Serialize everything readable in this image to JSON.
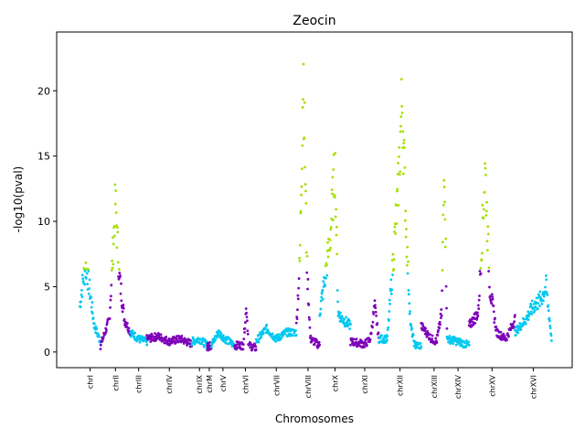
{
  "chart_data": {
    "type": "scatter",
    "title": "Zeocin",
    "xlabel": "Chromosomes",
    "ylabel": "-log10(pval)",
    "ylim": [
      -1.2,
      24.5
    ],
    "xlim": [
      0,
      1
    ],
    "yticks": [
      0,
      5,
      10,
      15,
      20
    ],
    "grid": false,
    "legend": "none",
    "colors": {
      "odd_chromosomes": "#00c8f0",
      "even_chromosomes": "#7e00b8",
      "significant": "#a5e000",
      "significance_threshold": 6.2
    },
    "chromosomes": [
      {
        "name": "chrI",
        "x_start": 0.045,
        "x_end": 0.085,
        "color": "cyan",
        "profile": [
          [
            0,
            3.5
          ],
          [
            0.15,
            5.5
          ],
          [
            0.3,
            6.5
          ],
          [
            0.5,
            4.5
          ],
          [
            0.7,
            2
          ],
          [
            1,
            0.8
          ]
        ]
      },
      {
        "name": "chrII",
        "x_start": 0.085,
        "x_end": 0.143,
        "color": "purple",
        "profile": [
          [
            0,
            0.5
          ],
          [
            0.3,
            2.5
          ],
          [
            0.5,
            11.5
          ],
          [
            0.62,
            6
          ],
          [
            0.8,
            2.5
          ],
          [
            1,
            1.5
          ]
        ]
      },
      {
        "name": "chrIII",
        "x_start": 0.143,
        "x_end": 0.175,
        "color": "cyan",
        "profile": [
          [
            0,
            1.5
          ],
          [
            0.5,
            1
          ],
          [
            1,
            0.8
          ]
        ]
      },
      {
        "name": "chrIV",
        "x_start": 0.175,
        "x_end": 0.262,
        "color": "purple",
        "profile": [
          [
            0,
            1
          ],
          [
            0.25,
            1.2
          ],
          [
            0.5,
            0.8
          ],
          [
            0.75,
            1
          ],
          [
            1,
            0.6
          ]
        ]
      },
      {
        "name": "chrIX",
        "x_start": 0.262,
        "x_end": 0.292,
        "color": "cyan",
        "profile": [
          [
            0,
            0.8
          ],
          [
            0.5,
            1
          ],
          [
            1,
            0.5
          ]
        ]
      },
      {
        "name": "chrM",
        "x_start": 0.292,
        "x_end": 0.3,
        "color": "purple",
        "profile": [
          [
            0,
            0.4
          ],
          [
            1,
            0.5
          ]
        ]
      },
      {
        "name": "chrV",
        "x_start": 0.3,
        "x_end": 0.345,
        "color": "cyan",
        "profile": [
          [
            0,
            0.5
          ],
          [
            0.3,
            1.5
          ],
          [
            0.6,
            1
          ],
          [
            1,
            0.5
          ]
        ]
      },
      {
        "name": "chrVI",
        "x_start": 0.345,
        "x_end": 0.387,
        "color": "purple",
        "profile": [
          [
            0,
            0.5
          ],
          [
            0.4,
            0.5
          ],
          [
            0.55,
            3.5
          ],
          [
            0.65,
            0.5
          ],
          [
            1,
            0.3
          ]
        ]
      },
      {
        "name": "chrVII",
        "x_start": 0.387,
        "x_end": 0.465,
        "color": "cyan",
        "profile": [
          [
            0,
            0.8
          ],
          [
            0.25,
            1.8
          ],
          [
            0.5,
            1
          ],
          [
            0.75,
            1.5
          ],
          [
            1,
            1.5
          ]
        ]
      },
      {
        "name": "chrVIII",
        "x_start": 0.465,
        "x_end": 0.51,
        "color": "purple",
        "profile": [
          [
            0,
            2
          ],
          [
            0.15,
            7
          ],
          [
            0.3,
            22
          ],
          [
            0.45,
            7
          ],
          [
            0.6,
            1
          ],
          [
            1,
            0.5
          ]
        ]
      },
      {
        "name": "chrX",
        "x_start": 0.51,
        "x_end": 0.57,
        "color": "cyan",
        "profile": [
          [
            0,
            3
          ],
          [
            0.2,
            6
          ],
          [
            0.35,
            9
          ],
          [
            0.5,
            14.5
          ],
          [
            0.6,
            3
          ],
          [
            0.75,
            2.5
          ],
          [
            1,
            2
          ]
        ]
      },
      {
        "name": "chrXI",
        "x_start": 0.57,
        "x_end": 0.625,
        "color": "purple",
        "profile": [
          [
            0,
            0.8
          ],
          [
            0.5,
            0.6
          ],
          [
            0.7,
            1
          ],
          [
            0.85,
            3.5
          ],
          [
            1,
            1
          ]
        ]
      },
      {
        "name": "chrXII",
        "x_start": 0.625,
        "x_end": 0.707,
        "color": "cyan",
        "profile": [
          [
            0,
            1
          ],
          [
            0.2,
            1
          ],
          [
            0.45,
            12
          ],
          [
            0.55,
            19.5
          ],
          [
            0.65,
            9
          ],
          [
            0.75,
            2
          ],
          [
            0.85,
            0.5
          ],
          [
            1,
            0.5
          ]
        ]
      },
      {
        "name": "chrXIII",
        "x_start": 0.707,
        "x_end": 0.757,
        "color": "purple",
        "profile": [
          [
            0,
            2
          ],
          [
            0.2,
            1.5
          ],
          [
            0.4,
            1
          ],
          [
            0.6,
            0.8
          ],
          [
            0.8,
            3
          ],
          [
            0.9,
            15
          ],
          [
            1,
            2
          ]
        ]
      },
      {
        "name": "chrXIV",
        "x_start": 0.757,
        "x_end": 0.8,
        "color": "cyan",
        "profile": [
          [
            0,
            1
          ],
          [
            0.5,
            0.8
          ],
          [
            1,
            0.5
          ]
        ]
      },
      {
        "name": "chrXV",
        "x_start": 0.8,
        "x_end": 0.889,
        "color": "purple",
        "profile": [
          [
            0,
            2
          ],
          [
            0.2,
            3
          ],
          [
            0.35,
            14
          ],
          [
            0.45,
            5
          ],
          [
            0.6,
            1.5
          ],
          [
            0.8,
            1
          ],
          [
            1,
            2.5
          ]
        ]
      },
      {
        "name": "chrXVI",
        "x_start": 0.889,
        "x_end": 0.96,
        "color": "cyan",
        "profile": [
          [
            0,
            1.5
          ],
          [
            0.3,
            2.5
          ],
          [
            0.5,
            3.5
          ],
          [
            0.7,
            4
          ],
          [
            0.85,
            5
          ],
          [
            1,
            1
          ]
        ]
      }
    ]
  }
}
